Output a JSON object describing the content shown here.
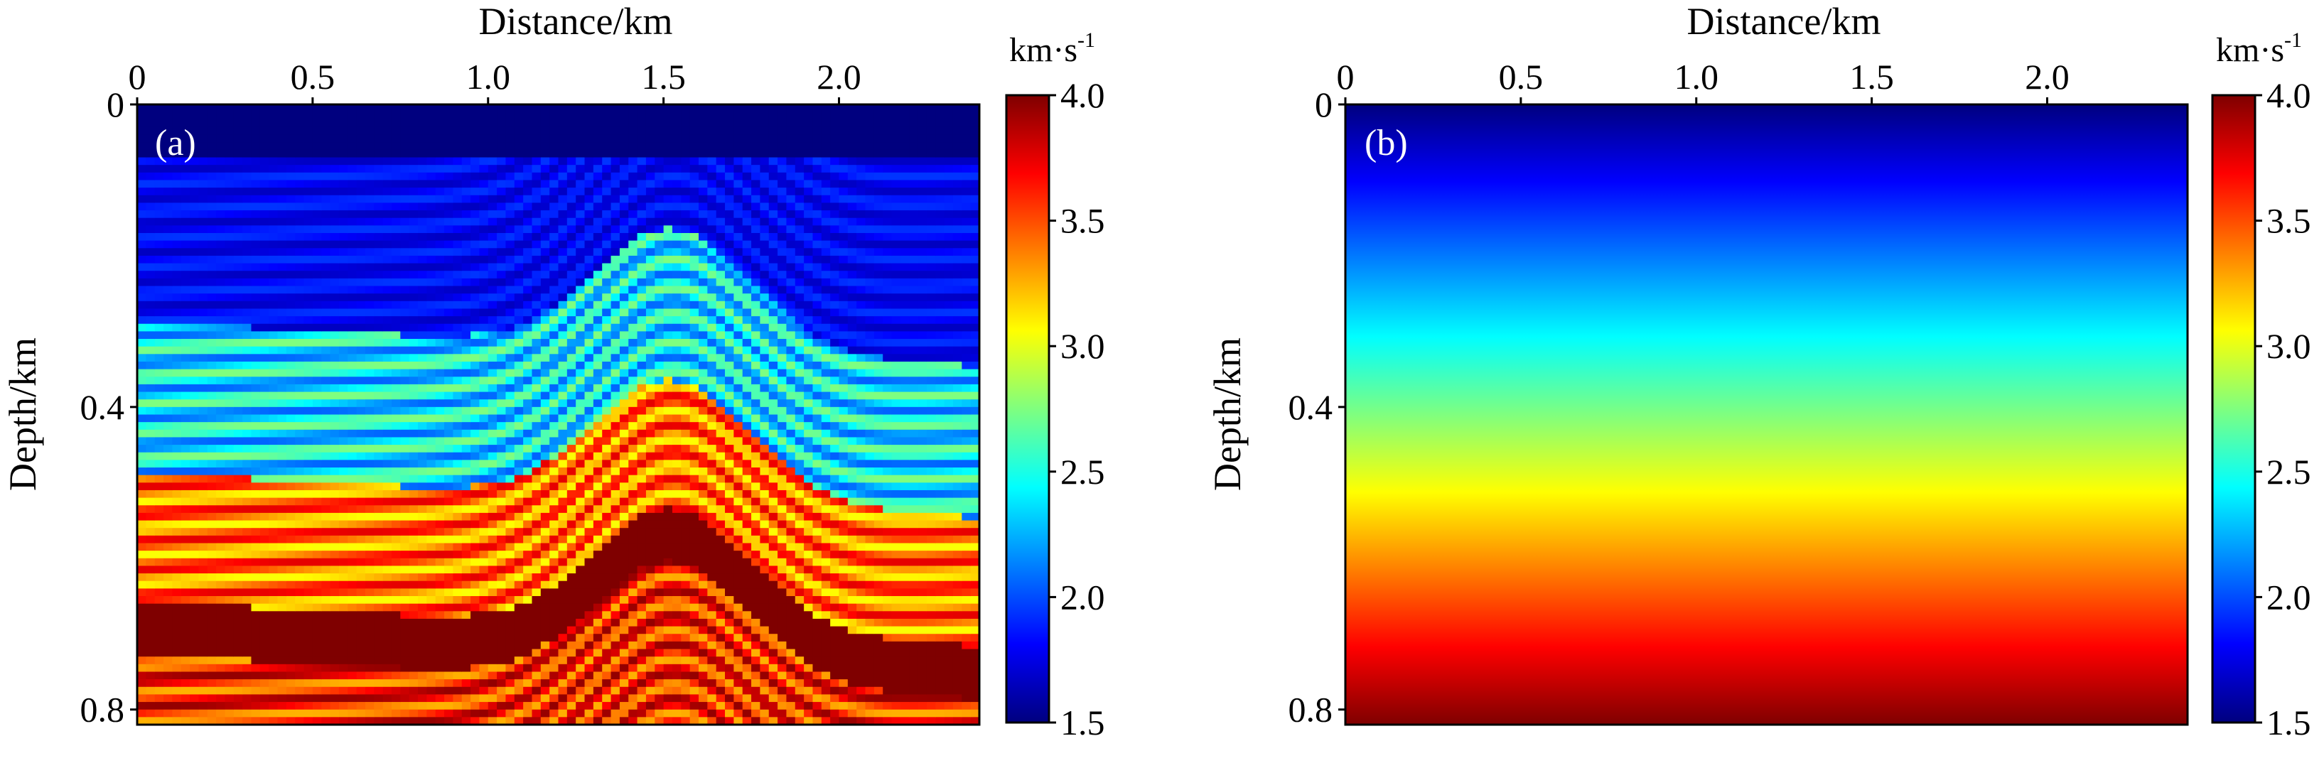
{
  "chart_data": [
    {
      "type": "heatmap",
      "panel_label": "(a)",
      "description_kind": "true velocity model",
      "xlabel": "Distance/km",
      "ylabel": "Depth/km",
      "xlim": [
        0,
        2.4
      ],
      "ylim": [
        0,
        0.82
      ],
      "xticks": [
        {
          "value": 0,
          "label": "0"
        },
        {
          "value": 0.5,
          "label": "0.5"
        },
        {
          "value": 1.0,
          "label": "1.0"
        },
        {
          "value": 1.5,
          "label": "1.5"
        },
        {
          "value": 2.0,
          "label": "2.0"
        }
      ],
      "yticks": [
        {
          "value": 0,
          "label": "0"
        },
        {
          "value": 0.4,
          "label": "0.4"
        },
        {
          "value": 0.8,
          "label": "0.8"
        }
      ],
      "colorbar": {
        "min": 1.5,
        "max": 4.0,
        "ticks": [
          {
            "value": 4.0,
            "label": "4.0"
          },
          {
            "value": 3.5,
            "label": "3.5"
          },
          {
            "value": 3.0,
            "label": "3.0"
          },
          {
            "value": 2.5,
            "label": "2.5"
          },
          {
            "value": 2.0,
            "label": "2.0"
          },
          {
            "value": 1.5,
            "label": "1.5"
          }
        ],
        "unit_base": "km·s",
        "unit_exp": "-1"
      },
      "layers_from_top": [
        {
          "depth_top": 0.0,
          "velocity": 1.5
        },
        {
          "depth_top": 0.07,
          "velocity": 1.8
        },
        {
          "depth_top": 0.3,
          "velocity": 2.4
        },
        {
          "depth_top": 0.5,
          "velocity": 3.4
        },
        {
          "depth_top": 0.67,
          "velocity": 4.0
        },
        {
          "depth_top": 0.74,
          "velocity": 3.6
        }
      ]
    },
    {
      "type": "heatmap",
      "panel_label": "(b)",
      "description_kind": "linear gradient initial model",
      "xlabel": "Distance/km",
      "ylabel": "Depth/km",
      "xlim": [
        0,
        2.4
      ],
      "ylim": [
        0,
        0.82
      ],
      "xticks": [
        {
          "value": 0,
          "label": "0"
        },
        {
          "value": 0.5,
          "label": "0.5"
        },
        {
          "value": 1.0,
          "label": "1.0"
        },
        {
          "value": 1.5,
          "label": "1.5"
        },
        {
          "value": 2.0,
          "label": "2.0"
        }
      ],
      "yticks": [
        {
          "value": 0,
          "label": "0"
        },
        {
          "value": 0.4,
          "label": "0.4"
        },
        {
          "value": 0.8,
          "label": "0.8"
        }
      ],
      "colorbar": {
        "min": 1.5,
        "max": 4.0,
        "ticks": [
          {
            "value": 4.0,
            "label": "4.0"
          },
          {
            "value": 3.5,
            "label": "3.5"
          },
          {
            "value": 3.0,
            "label": "3.0"
          },
          {
            "value": 2.5,
            "label": "2.5"
          },
          {
            "value": 2.0,
            "label": "2.0"
          },
          {
            "value": 1.5,
            "label": "1.5"
          }
        ],
        "unit_base": "km·s",
        "unit_exp": "-1"
      },
      "gradient": {
        "velocity_top": 1.5,
        "velocity_bottom": 4.0
      }
    }
  ],
  "colors": {
    "jet_stops": [
      "#00007f",
      "#0000ff",
      "#007fff",
      "#00ffff",
      "#7fff7f",
      "#ffff00",
      "#ff7f00",
      "#ff0000",
      "#7f0000"
    ]
  }
}
